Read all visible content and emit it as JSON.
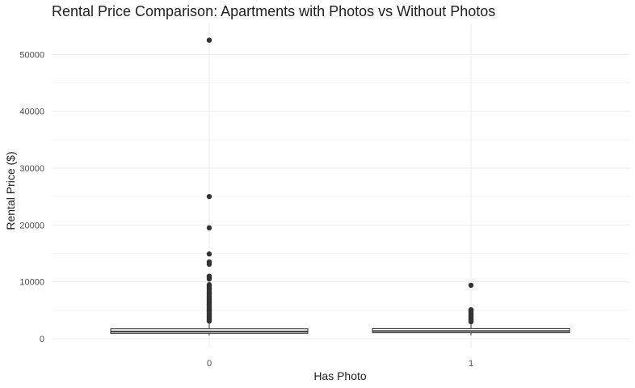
{
  "chart_data": {
    "type": "box",
    "title": "Rental Price Comparison: Apartments with Photos vs Without Photos",
    "xlabel": "Has Photo",
    "ylabel": "Rental Price ($)",
    "categories": [
      "0",
      "1"
    ],
    "yticks": [
      0,
      10000,
      20000,
      30000,
      40000,
      50000
    ],
    "ylim": [
      -1700,
      55300
    ],
    "grid": true,
    "boxes": [
      {
        "category": "0",
        "min": 550,
        "q1": 950,
        "median": 1250,
        "q3": 1750,
        "max": 2950,
        "outliers": [
          52500,
          25000,
          19500,
          14900,
          13500,
          13100,
          11000,
          10800,
          10500,
          9500,
          9300,
          9000,
          8800,
          8500,
          8200,
          8000,
          7800,
          7500,
          7300,
          7100,
          6900,
          6700,
          6500,
          6300,
          6100,
          5900,
          5700,
          5500,
          5300,
          5100,
          4900,
          4700,
          4500,
          4300,
          4100,
          3900,
          3700,
          3500,
          3300,
          3100
        ]
      },
      {
        "category": "1",
        "min": 600,
        "q1": 1050,
        "median": 1350,
        "q3": 1800,
        "max": 2900,
        "outliers": [
          9400,
          5100,
          4900,
          4700,
          4500,
          4300,
          4100,
          3900,
          3700,
          3500,
          3300,
          3100,
          3000
        ]
      }
    ],
    "colors": {
      "box_fill": "#ffffff",
      "box_line": "#333333",
      "outlier": "#333333",
      "grid": "#ebebeb"
    }
  }
}
